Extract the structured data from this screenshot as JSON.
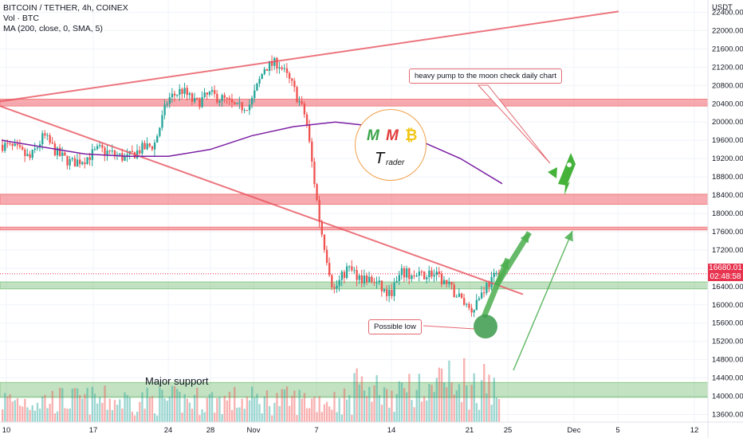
{
  "header": {
    "symbol_line": "BITCOIN / TETHER, 4h, COINEX",
    "volume_line": "Vol · BTC",
    "ma_line": "MA (200, close, 0, SMA, 5)"
  },
  "price_axis": {
    "currency": "USDT"
  },
  "price_tag": {
    "price": "16680.01",
    "countdown": "02:48:58"
  },
  "annotations": {
    "callout_pump": "heavy pump to the moon check daily chart",
    "callout_low": "Possible low",
    "major_support": "Major support"
  },
  "logo": {
    "m1": "M",
    "m2": "M",
    "b": "₿",
    "t": "T",
    "rader": "rader"
  },
  "colors": {
    "up": "#26a69a",
    "down": "#ef5350",
    "ma": "#7b1fa2",
    "resistance": "#f08080",
    "support": "#8cc98c",
    "arrow": "#4caf50",
    "trend": "#e8535f"
  },
  "chart_data": {
    "type": "candlestick",
    "title": "BITCOIN / TETHER, 4h, COINEX",
    "ylim": [
      13400,
      22600
    ],
    "y_ticks": [
      13600,
      14000,
      14400,
      14800,
      15200,
      15600,
      16000,
      16400,
      16800,
      17200,
      17600,
      18000,
      18400,
      18800,
      19200,
      19600,
      20000,
      20400,
      20800,
      21200,
      21600,
      22000,
      22400
    ],
    "x_ticks": [
      "10",
      "17",
      "24",
      "28",
      "Nov",
      "7",
      "14",
      "21",
      "25",
      "Dec",
      "5",
      "12"
    ],
    "price_path": [
      19500,
      19400,
      19200,
      19700,
      19300,
      19100,
      19200,
      19400,
      19300,
      19200,
      19400,
      19500,
      20500,
      20700,
      20400,
      20600,
      20500,
      20300,
      20400,
      21200,
      21300,
      20800,
      20100,
      17800,
      16300,
      16800,
      16600,
      16500,
      16200,
      16700,
      16600,
      16700,
      16500,
      16200,
      15900,
      16400,
      16680
    ],
    "ma_path": [
      19600,
      19450,
      19300,
      19250,
      19250,
      19400,
      19700,
      19900,
      20000,
      19900,
      19600,
      19200,
      18650
    ],
    "zones": [
      {
        "type": "resistance",
        "low": 20350,
        "high": 20500
      },
      {
        "type": "resistance",
        "low": 18200,
        "high": 18420
      },
      {
        "type": "resistance",
        "low": 17640,
        "high": 17700
      },
      {
        "type": "support",
        "low": 16350,
        "high": 16500
      },
      {
        "type": "support",
        "low": 13980,
        "high": 14300
      }
    ]
  }
}
